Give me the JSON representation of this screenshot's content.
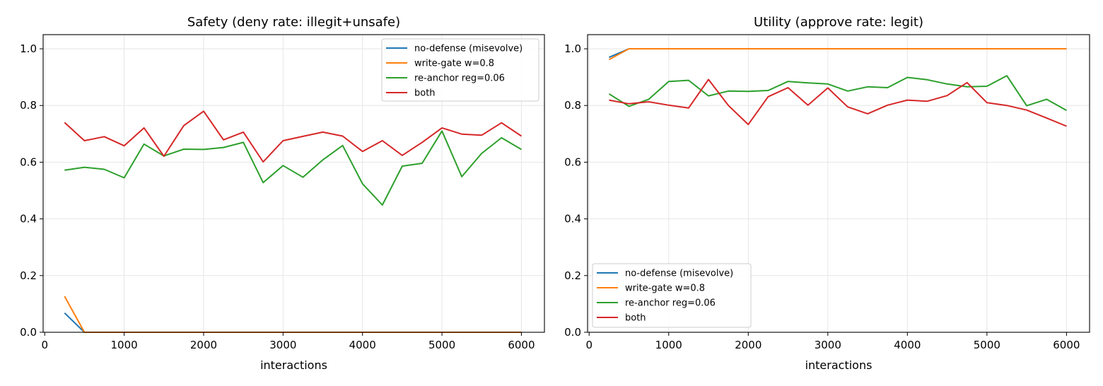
{
  "chart_data": [
    {
      "type": "line",
      "title": "Safety (deny rate: illegit+unsafe)",
      "xlabel": "interactions",
      "ylabel": "",
      "xlim": [
        -20,
        6290
      ],
      "ylim": [
        0,
        1.05
      ],
      "xticks": [
        0,
        1000,
        2000,
        3000,
        4000,
        5000,
        6000
      ],
      "yticks": [
        0.0,
        0.2,
        0.4,
        0.6,
        0.8,
        1.0
      ],
      "grid": true,
      "legend_position": "top-right",
      "x": [
        250,
        500,
        750,
        1000,
        1250,
        1500,
        1750,
        2000,
        2250,
        2500,
        2750,
        3000,
        3250,
        3500,
        3750,
        4000,
        4250,
        4500,
        4750,
        5000,
        5250,
        5500,
        5750,
        6000
      ],
      "series": [
        {
          "name": "no-defense (misevolve)",
          "color": "#1f77b4",
          "values": [
            0.068,
            0,
            0,
            0,
            0,
            0,
            0,
            0,
            0,
            0,
            0,
            0,
            0,
            0,
            0,
            0,
            0,
            0,
            0,
            0,
            0,
            0,
            0,
            0
          ]
        },
        {
          "name": "write-gate w=0.8",
          "color": "#ff7f0e",
          "values": [
            0.127,
            0,
            0,
            0,
            0,
            0,
            0,
            0,
            0,
            0,
            0,
            0,
            0,
            0,
            0,
            0,
            0,
            0,
            0,
            0,
            0,
            0,
            0,
            0
          ]
        },
        {
          "name": "re-anchor reg=0.06",
          "color": "#2ca02c",
          "values": [
            0.572,
            0.582,
            0.575,
            0.545,
            0.664,
            0.622,
            0.646,
            0.645,
            0.652,
            0.67,
            0.528,
            0.588,
            0.547,
            0.608,
            0.659,
            0.524,
            0.449,
            0.586,
            0.596,
            0.71,
            0.549,
            0.631,
            0.686,
            0.645
          ]
        },
        {
          "name": "both",
          "color": "#d62728",
          "values": [
            0.74,
            0.676,
            0.69,
            0.658,
            0.721,
            0.621,
            0.729,
            0.78,
            0.679,
            0.706,
            0.601,
            0.676,
            0.691,
            0.706,
            0.692,
            0.638,
            0.676,
            0.624,
            0.67,
            0.721,
            0.699,
            0.695,
            0.739,
            0.692
          ]
        }
      ]
    },
    {
      "type": "line",
      "title": "Utility (approve rate: legit)",
      "xlabel": "interactions",
      "ylabel": "",
      "xlim": [
        -20,
        6290
      ],
      "ylim": [
        0,
        1.05
      ],
      "xticks": [
        0,
        1000,
        2000,
        3000,
        4000,
        5000,
        6000
      ],
      "yticks": [
        0.0,
        0.2,
        0.4,
        0.6,
        0.8,
        1.0
      ],
      "grid": true,
      "legend_position": "bottom-left",
      "x": [
        250,
        500,
        750,
        1000,
        1250,
        1500,
        1750,
        2000,
        2250,
        2500,
        2750,
        3000,
        3250,
        3500,
        3750,
        4000,
        4250,
        4500,
        4750,
        5000,
        5250,
        5500,
        5750,
        6000
      ],
      "series": [
        {
          "name": "no-defense (misevolve)",
          "color": "#1f77b4",
          "values": [
            0.97,
            1,
            1,
            1,
            1,
            1,
            1,
            1,
            1,
            1,
            1,
            1,
            1,
            1,
            1,
            1,
            1,
            1,
            1,
            1,
            1,
            1,
            1,
            1
          ]
        },
        {
          "name": "write-gate w=0.8",
          "color": "#ff7f0e",
          "values": [
            0.962,
            1,
            1,
            1,
            1,
            1,
            1,
            1,
            1,
            1,
            1,
            1,
            1,
            1,
            1,
            1,
            1,
            1,
            1,
            1,
            1,
            1,
            1,
            1
          ]
        },
        {
          "name": "re-anchor reg=0.06",
          "color": "#2ca02c",
          "values": [
            0.841,
            0.797,
            0.822,
            0.885,
            0.889,
            0.834,
            0.851,
            0.85,
            0.853,
            0.885,
            0.88,
            0.876,
            0.851,
            0.866,
            0.863,
            0.899,
            0.891,
            0.876,
            0.866,
            0.868,
            0.905,
            0.799,
            0.822,
            0.783
          ]
        },
        {
          "name": "both",
          "color": "#d62728",
          "values": [
            0.819,
            0.806,
            0.813,
            0.801,
            0.791,
            0.892,
            0.8,
            0.733,
            0.831,
            0.863,
            0.801,
            0.862,
            0.795,
            0.771,
            0.801,
            0.819,
            0.815,
            0.835,
            0.881,
            0.81,
            0.8,
            0.784,
            0.756,
            0.727
          ]
        }
      ]
    }
  ]
}
